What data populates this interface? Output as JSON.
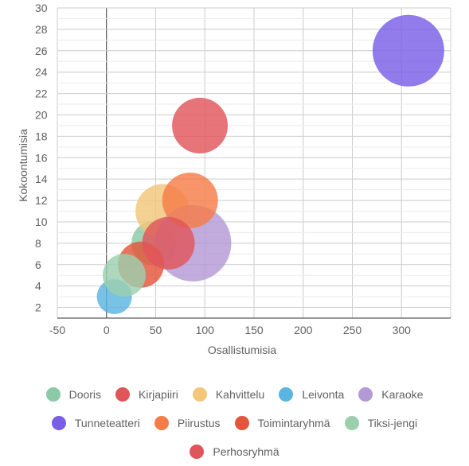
{
  "chart_data": {
    "type": "bubble",
    "title": "",
    "xlabel": "Osallistumisia",
    "ylabel": "Kokoontumisia",
    "xlim": [
      -50,
      350
    ],
    "ylim": [
      1,
      30
    ],
    "xticks": [
      "-50",
      "0",
      "50",
      "100",
      "150",
      "200",
      "250",
      "300"
    ],
    "yticks": [
      "2",
      "4",
      "6",
      "8",
      "10",
      "12",
      "14",
      "16",
      "18",
      "20",
      "22",
      "24",
      "26",
      "28",
      "30"
    ],
    "grid": true,
    "legend_position": "bottom",
    "series": [
      {
        "name": "Dooris",
        "color": "#8cc9a6",
        "x": 48,
        "y": 8,
        "r": 28
      },
      {
        "name": "Kirjapiiri",
        "color": "#e0555a",
        "x": 95,
        "y": 19,
        "r": 35
      },
      {
        "name": "Kahvittelu",
        "color": "#f2c77a",
        "x": 57,
        "y": 11,
        "r": 34
      },
      {
        "name": "Leivonta",
        "color": "#5ab5e0",
        "x": 8,
        "y": 3,
        "r": 22
      },
      {
        "name": "Karaoke",
        "color": "#b39ad6",
        "x": 88,
        "y": 8,
        "r": 48
      },
      {
        "name": "Tunneteatteri",
        "color": "#7a5ee6",
        "x": 307,
        "y": 26,
        "r": 45
      },
      {
        "name": "Piirustus",
        "color": "#f77d48",
        "x": 85,
        "y": 12,
        "r": 35
      },
      {
        "name": "Toimintaryhmä",
        "color": "#e4553a",
        "x": 35,
        "y": 6,
        "r": 29
      },
      {
        "name": "Tiksi-jengi",
        "color": "#9bcfae",
        "x": 18,
        "y": 5,
        "r": 27
      },
      {
        "name": "Perhosryhmä",
        "color": "#e0555a",
        "x": 63,
        "y": 8,
        "r": 33
      }
    ]
  },
  "legend_rows": [
    [
      0,
      1,
      2,
      3,
      4
    ],
    [
      5,
      6,
      7,
      8
    ],
    [
      9
    ]
  ]
}
